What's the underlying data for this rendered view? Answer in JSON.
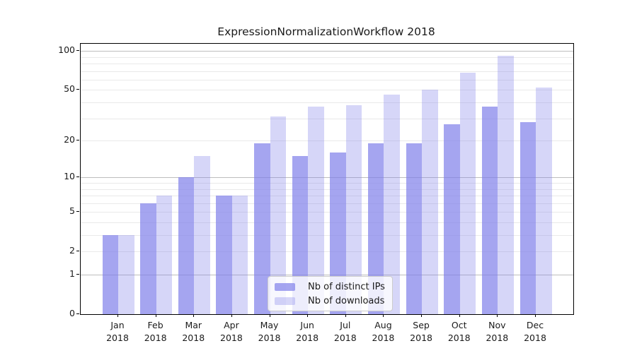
{
  "title": "ExpressionNormalizationWorkflow 2018",
  "chart_data": {
    "type": "bar",
    "title": "ExpressionNormalizationWorkflow 2018",
    "categories": [
      {
        "month": "Jan",
        "year": "2018"
      },
      {
        "month": "Feb",
        "year": "2018"
      },
      {
        "month": "Mar",
        "year": "2018"
      },
      {
        "month": "Apr",
        "year": "2018"
      },
      {
        "month": "May",
        "year": "2018"
      },
      {
        "month": "Jun",
        "year": "2018"
      },
      {
        "month": "Jul",
        "year": "2018"
      },
      {
        "month": "Aug",
        "year": "2018"
      },
      {
        "month": "Sep",
        "year": "2018"
      },
      {
        "month": "Oct",
        "year": "2018"
      },
      {
        "month": "Nov",
        "year": "2018"
      },
      {
        "month": "Dec",
        "year": "2018"
      }
    ],
    "series": [
      {
        "name": "Nb of distinct IPs",
        "color": "rgba(127,127,234,0.70)",
        "values": [
          3,
          6,
          10,
          7,
          19,
          15,
          16,
          19,
          19,
          27,
          37,
          28
        ]
      },
      {
        "name": "Nb of downloads",
        "color": "rgba(127,127,234,0.32)",
        "values": [
          3,
          7,
          15,
          7,
          31,
          37,
          38,
          46,
          50,
          68,
          92,
          52
        ]
      }
    ],
    "xlabel": "",
    "ylabel": "",
    "yscale": "log1p",
    "ylim": [
      0,
      113.6
    ],
    "yticks": [
      0,
      1,
      2,
      5,
      10,
      20,
      50,
      100
    ],
    "major_gridlines": [
      1,
      10,
      100
    ],
    "minor_gridlines": [
      2,
      3,
      4,
      5,
      6,
      7,
      8,
      9,
      20,
      30,
      40,
      50,
      60,
      70,
      80,
      90
    ],
    "grid": true,
    "legend_position": "inside-bottom-center"
  },
  "legend": {
    "items": [
      {
        "label": "Nb of distinct IPs",
        "color": "rgba(127,127,234,0.70)"
      },
      {
        "label": "Nb of downloads",
        "color": "rgba(127,127,234,0.32)"
      }
    ]
  },
  "colors": {
    "bar_base": "#7f7fea",
    "grid_minor": "#e9e9e9",
    "grid_major": "#bdbdbd",
    "spine": "#000000",
    "text": "#1a1a1a",
    "legend_border": "#cccccc"
  }
}
